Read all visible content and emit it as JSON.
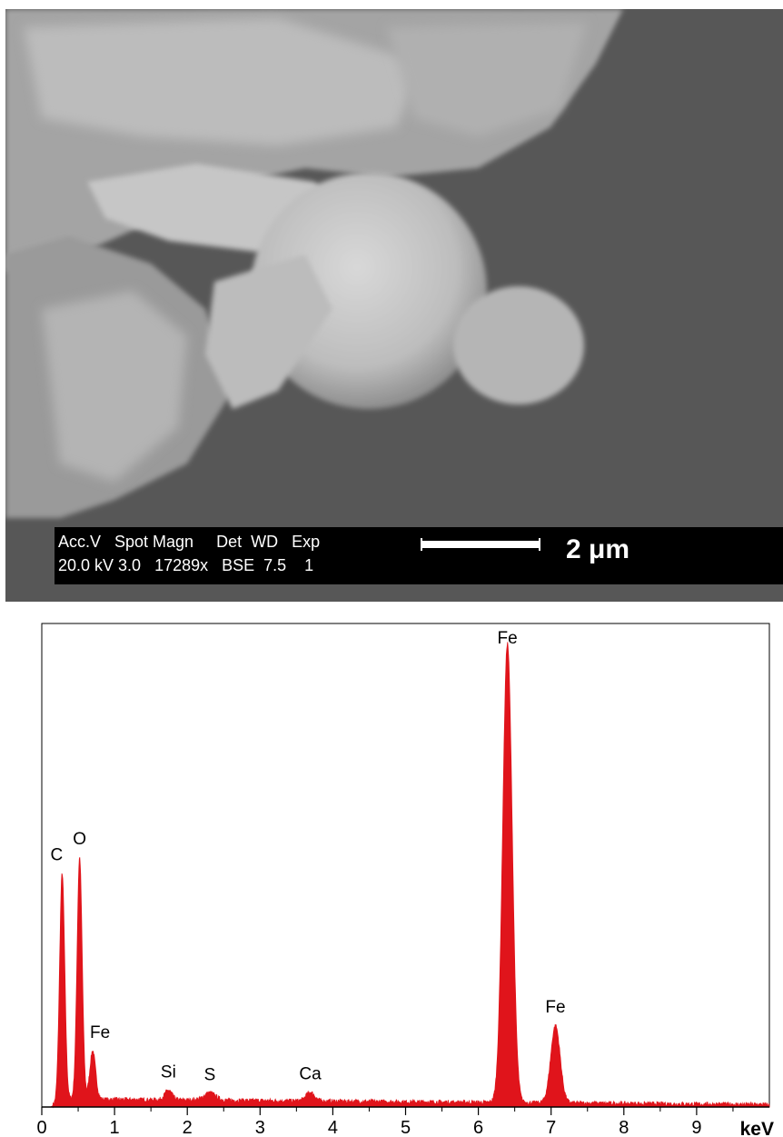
{
  "sem": {
    "databar": {
      "header": "Acc.V   Spot Magn     Det  WD   Exp",
      "values": "20.0 kV 3.0   17289x   BSE  7.5    1",
      "scale_label": "2 μm"
    }
  },
  "chart_data": {
    "type": "area",
    "title": "",
    "xlabel": "keV",
    "ylabel": "",
    "xlim": [
      0,
      10
    ],
    "ylim": [
      0,
      100
    ],
    "x_ticks": [
      "0",
      "1",
      "2",
      "3",
      "4",
      "5",
      "6",
      "7",
      "8",
      "9"
    ],
    "x_unit_label": "keV",
    "grid": false,
    "legend": "none",
    "series_color": "#e0141b",
    "background_level": 1.5,
    "peaks": [
      {
        "label": "C",
        "energy": 0.28,
        "height": 47,
        "width": 0.035
      },
      {
        "label": "O",
        "energy": 0.52,
        "height": 50,
        "width": 0.035
      },
      {
        "label": "Fe",
        "energy": 0.7,
        "height": 10,
        "width": 0.04
      },
      {
        "label": "Si",
        "energy": 1.74,
        "height": 2.0,
        "width": 0.05
      },
      {
        "label": "S",
        "energy": 2.31,
        "height": 1.5,
        "width": 0.08
      },
      {
        "label": "Ca",
        "energy": 3.69,
        "height": 1.8,
        "width": 0.06
      },
      {
        "label": "Fe",
        "energy": 6.4,
        "height": 95,
        "width": 0.065
      },
      {
        "label": "Fe",
        "energy": 7.06,
        "height": 16,
        "width": 0.065
      }
    ]
  }
}
